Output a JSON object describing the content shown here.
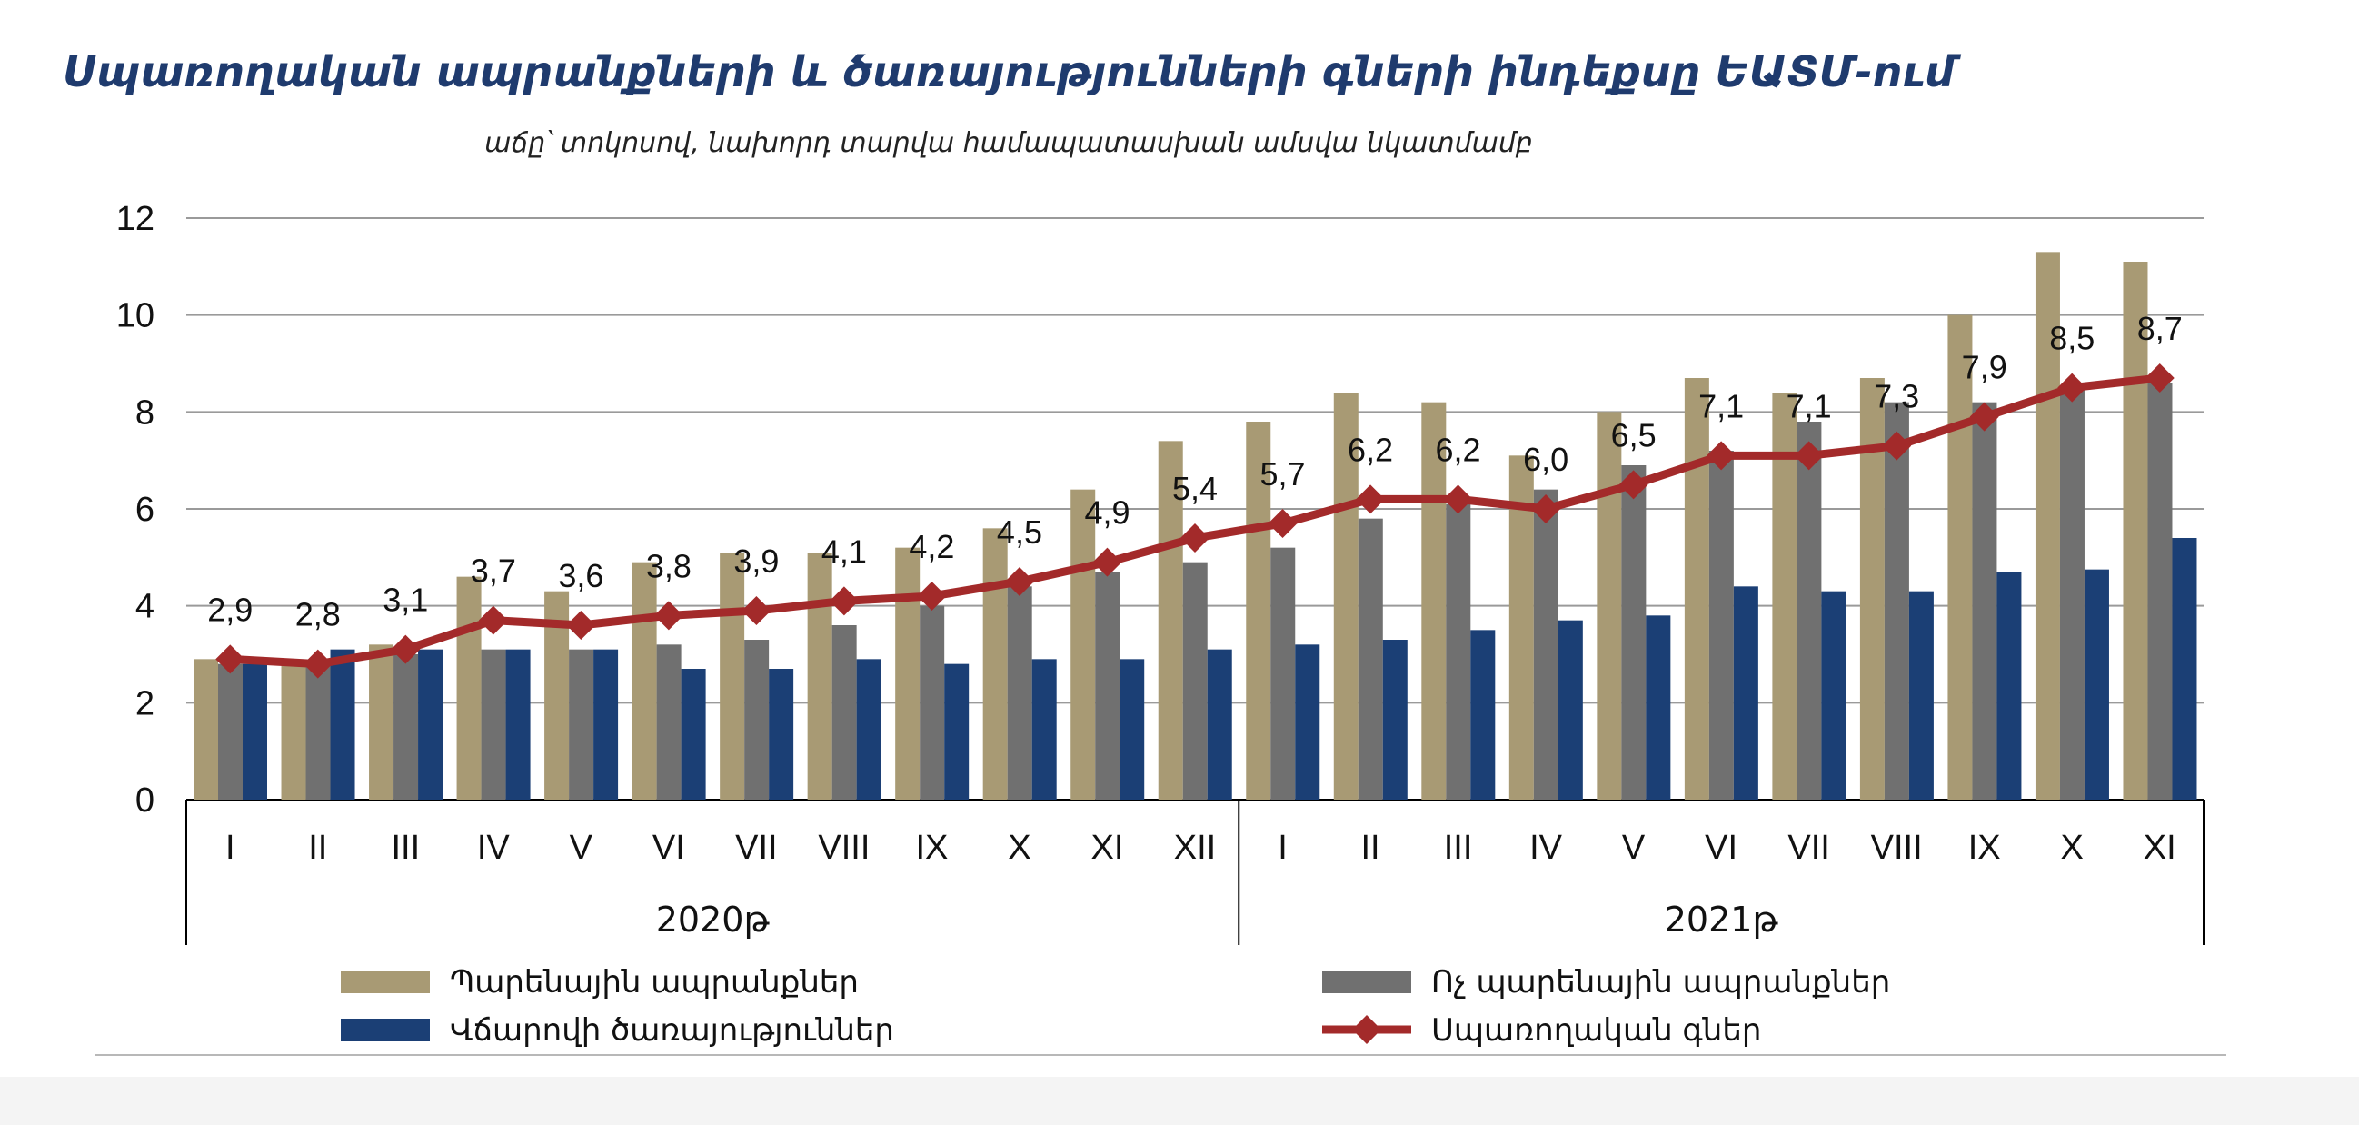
{
  "chart_data": {
    "type": "bar",
    "title": "Սպառողական ապրանքների և ծառայությունների գների ինդեքսը ԵԱՏՄ-ում",
    "subtitle": "աճը՝ տոկոսով, նախորդ տարվա համապատասխան ամսվա նկատմամբ",
    "categories": [
      "I",
      "II",
      "III",
      "IV",
      "V",
      "VI",
      "VII",
      "VIII",
      "IX",
      "X",
      "XI",
      "XII",
      "I",
      "II",
      "III",
      "IV",
      "V",
      "VI",
      "VII",
      "VIII",
      "IX",
      "X",
      "XI"
    ],
    "groups": [
      {
        "label": "2020թ",
        "count": 12
      },
      {
        "label": "2021թ",
        "count": 11
      }
    ],
    "ylim": [
      0,
      12
    ],
    "yticks": [
      "0",
      "2",
      "4",
      "6",
      "8",
      "10",
      "12"
    ],
    "grid": true,
    "legend_position": "bottom",
    "series": [
      {
        "name": "Պարենային ապրանքներ",
        "type": "bar",
        "color": "#a89a74",
        "values": [
          2.9,
          2.8,
          3.2,
          4.6,
          4.3,
          4.9,
          5.1,
          5.1,
          5.2,
          5.6,
          6.4,
          7.4,
          7.8,
          8.4,
          8.2,
          7.1,
          8.0,
          8.7,
          8.4,
          8.7,
          10.0,
          11.3,
          11.1
        ]
      },
      {
        "name": "Ոչ պարենային ապրանքներ",
        "type": "bar",
        "color": "#707070",
        "values": [
          2.8,
          2.8,
          3.0,
          3.1,
          3.1,
          3.2,
          3.3,
          3.6,
          4.0,
          4.4,
          4.7,
          4.9,
          5.2,
          5.8,
          6.1,
          6.4,
          6.9,
          7.2,
          7.8,
          8.2,
          8.2,
          8.5,
          8.6
        ]
      },
      {
        "name": "Վճարովի ծառայություններ",
        "type": "bar",
        "color": "#1b3f75",
        "values": [
          2.8,
          3.1,
          3.1,
          3.1,
          3.1,
          2.7,
          2.7,
          2.9,
          2.8,
          2.9,
          2.9,
          3.1,
          3.2,
          3.3,
          3.5,
          3.7,
          3.8,
          4.4,
          4.3,
          4.3,
          4.7,
          4.75,
          5.4
        ]
      },
      {
        "name": "Սպառողական գներ",
        "type": "line",
        "color": "#a32a2a",
        "values": [
          2.9,
          2.8,
          3.1,
          3.7,
          3.6,
          3.8,
          3.9,
          4.1,
          4.2,
          4.5,
          4.9,
          5.4,
          5.7,
          6.2,
          6.2,
          6.0,
          6.5,
          7.1,
          7.1,
          7.3,
          7.9,
          8.5,
          8.7
        ],
        "labels": [
          "2,9",
          "2,8",
          "3,1",
          "3,7",
          "3,6",
          "3,8",
          "3,9",
          "4,1",
          "4,2",
          "4,5",
          "4,9",
          "5,4",
          "5,7",
          "6,2",
          "6,2",
          "6,0",
          "6,5",
          "7,1",
          "7,1",
          "7,3",
          "7,9",
          "8,5",
          "8,7"
        ]
      }
    ]
  }
}
